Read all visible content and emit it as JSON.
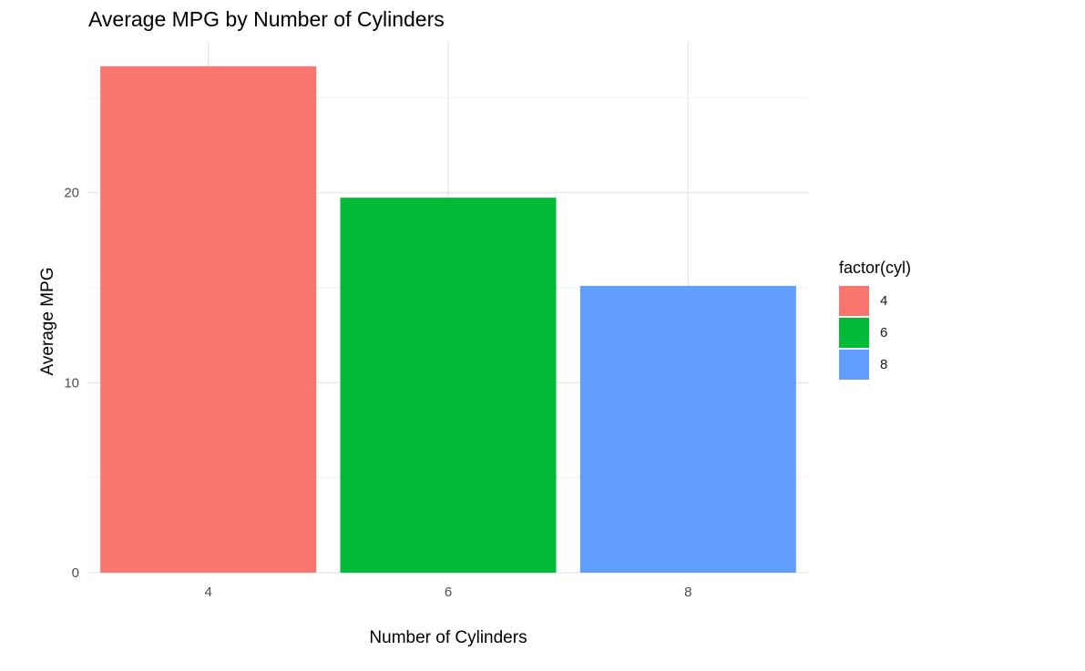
{
  "chart_data": {
    "type": "bar",
    "title": "Average MPG by Number of Cylinders",
    "xlabel": "Number of Cylinders",
    "ylabel": "Average MPG",
    "categories": [
      "4",
      "6",
      "8"
    ],
    "values": [
      26.66,
      19.74,
      15.1
    ],
    "colors": [
      "#F8766D",
      "#00BA38",
      "#619CFF"
    ],
    "ylim": [
      0,
      27.99
    ],
    "yticks": [
      0,
      10,
      20
    ],
    "grid": true,
    "legend": {
      "title": "factor(cyl)",
      "placement": "right",
      "items": [
        "4",
        "6",
        "8"
      ]
    }
  }
}
